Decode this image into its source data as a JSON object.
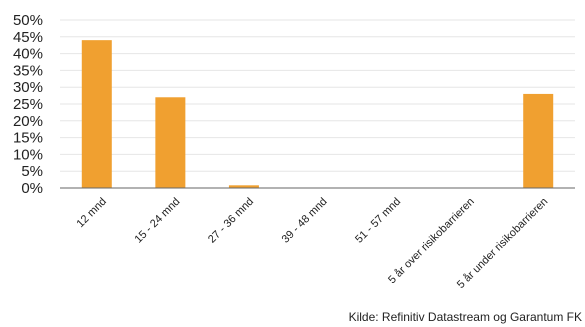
{
  "chart_data": {
    "type": "bar",
    "categories": [
      "12 mnd",
      "15 - 24 mnd",
      "27 - 36 mnd",
      "39 - 48 mnd",
      "51 - 57 mnd",
      "5 år over risikobarrieren",
      "5 år under risikobarrieren"
    ],
    "values": [
      44,
      27,
      0.8,
      0,
      0,
      0,
      28
    ],
    "ylim": [
      0,
      50
    ],
    "yticks": [
      "0%",
      "5%",
      "10%",
      "15%",
      "20%",
      "25%",
      "30%",
      "35%",
      "40%",
      "45%",
      "50%"
    ],
    "grid": true,
    "bar_color": "#F0A030",
    "axis_color": "#666666"
  },
  "source": "Kilde: Refinitiv Datastream og Garantum FK"
}
